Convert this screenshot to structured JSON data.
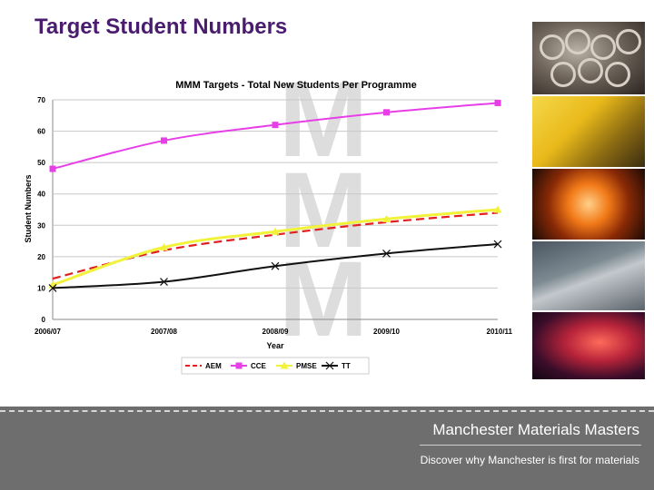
{
  "slide": {
    "title": "Target Student Numbers"
  },
  "chart_data": {
    "type": "line",
    "title": "MMM Targets - Total New Students Per Programme",
    "xlabel": "Year",
    "ylabel": "Student Numbers",
    "categories": [
      "2006/07",
      "2007/08",
      "2008/09",
      "2009/10",
      "2010/11"
    ],
    "y_ticks": [
      "0",
      "10",
      "20",
      "30",
      "40",
      "50",
      "60",
      "70"
    ],
    "ylim": [
      0,
      70
    ],
    "grid": true,
    "legend_position": "bottom",
    "series": [
      {
        "name": "AEM",
        "values": [
          13,
          22,
          27,
          31,
          34
        ],
        "color": "#e02020",
        "style": "dashed",
        "marker": "none"
      },
      {
        "name": "CCE",
        "values": [
          48,
          57,
          62,
          66,
          69
        ],
        "color": "#e83ee8",
        "style": "solid",
        "marker": "square"
      },
      {
        "name": "PMSE",
        "values": [
          11,
          23,
          28,
          32,
          35
        ],
        "color": "#f2f23a",
        "style": "solid",
        "marker": "triangle"
      },
      {
        "name": "TT",
        "values": [
          10,
          12,
          17,
          21,
          24
        ],
        "color": "#111111",
        "style": "solid",
        "marker": "x"
      }
    ]
  },
  "footer": {
    "title": "Manchester Materials Masters",
    "subtitle": "Discover why Manchester is first for materials"
  },
  "watermark": {
    "letters": [
      "M",
      "M",
      "M"
    ]
  },
  "photos": [
    {
      "icon": "tube-bundle-photo-icon"
    },
    {
      "icon": "fabric-photo-icon"
    },
    {
      "icon": "furnace-photo-icon"
    },
    {
      "icon": "rock-sample-photo-icon"
    },
    {
      "icon": "laser-optics-photo-icon"
    }
  ]
}
